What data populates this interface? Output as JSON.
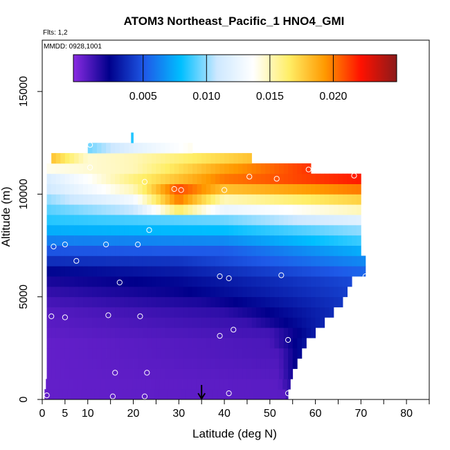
{
  "chart_data": {
    "type": "heatmap",
    "title": "ATOM3 Northeast_Pacific_1 HNO4_GMI",
    "flights_label": "Flts: 1,2",
    "dates_label": "MMDD: 0928,1001",
    "xlabel": "Latitude (deg N)",
    "ylabel": "Altitude (m)",
    "xlim": [
      0,
      85
    ],
    "ylim": [
      0,
      17500
    ],
    "x_ticks": [
      0,
      5,
      10,
      20,
      30,
      40,
      50,
      60,
      70,
      80
    ],
    "x_tick_labels": [
      "0",
      "5",
      "10",
      "20",
      "30",
      "40",
      "50",
      "60",
      "70",
      "80"
    ],
    "x_minor_ticks": [
      15,
      25,
      35,
      45,
      55,
      65,
      75,
      85
    ],
    "y_ticks": [
      0,
      5000,
      10000,
      15000
    ],
    "y_tick_labels": [
      "0",
      "5000",
      "10000",
      "15000"
    ],
    "colorbar": {
      "range": [
        -0.0005,
        0.025
      ],
      "ticks": [
        0.005,
        0.01,
        0.015,
        0.02
      ],
      "tick_labels": [
        "0.005",
        "0.010",
        "0.015",
        "0.020"
      ],
      "colors": [
        "#8a2be2",
        "#00008b",
        "#1e5ae8",
        "#00bfff",
        "#cde8ff",
        "#ffffff",
        "#ffee66",
        "#ff9900",
        "#ff1100",
        "#8b1a1a"
      ]
    },
    "arrow_latitude": 35,
    "layer_height": 500,
    "layers": [
      {
        "alt": 250,
        "x": [
          0.5,
          54
        ],
        "v": [
          [
            0.5,
            0.0003
          ],
          [
            53,
            0.0005
          ],
          [
            54,
            0.0012
          ]
        ]
      },
      {
        "alt": 750,
        "x": [
          0.8,
          54.5
        ],
        "v": [
          [
            0.8,
            0.0003
          ],
          [
            52,
            0.0005
          ],
          [
            54.5,
            0.0015
          ]
        ]
      },
      {
        "alt": 1250,
        "x": [
          1,
          55
        ],
        "v": [
          [
            1,
            0.0003
          ],
          [
            52,
            0.0006
          ],
          [
            55,
            0.002
          ]
        ]
      },
      {
        "alt": 1750,
        "x": [
          1,
          56
        ],
        "v": [
          [
            1,
            0.0003
          ],
          [
            52,
            0.0007
          ],
          [
            56,
            0.0025
          ]
        ]
      },
      {
        "alt": 2250,
        "x": [
          1,
          57
        ],
        "v": [
          [
            1,
            0.0003
          ],
          [
            52,
            0.0008
          ],
          [
            57,
            0.0028
          ]
        ]
      },
      {
        "alt": 2750,
        "x": [
          1,
          58
        ],
        "v": [
          [
            1,
            0.0003
          ],
          [
            50,
            0.0008
          ],
          [
            58,
            0.003
          ]
        ]
      },
      {
        "alt": 3250,
        "x": [
          1,
          60
        ],
        "v": [
          [
            1,
            0.0004
          ],
          [
            50,
            0.001
          ],
          [
            60,
            0.0032
          ]
        ]
      },
      {
        "alt": 3750,
        "x": [
          1,
          62
        ],
        "v": [
          [
            1,
            0.0005
          ],
          [
            45,
            0.0012
          ],
          [
            62,
            0.0035
          ]
        ]
      },
      {
        "alt": 4250,
        "x": [
          1,
          64
        ],
        "v": [
          [
            1,
            0.0006
          ],
          [
            40,
            0.0014
          ],
          [
            64,
            0.0037
          ]
        ]
      },
      {
        "alt": 4750,
        "x": [
          1,
          66
        ],
        "v": [
          [
            1,
            0.0009
          ],
          [
            35,
            0.0018
          ],
          [
            66,
            0.004
          ]
        ]
      },
      {
        "alt": 5250,
        "x": [
          1,
          67
        ],
        "v": [
          [
            1,
            0.0013
          ],
          [
            30,
            0.0022
          ],
          [
            67,
            0.0043
          ]
        ]
      },
      {
        "alt": 5750,
        "x": [
          1,
          68
        ],
        "v": [
          [
            1,
            0.0018
          ],
          [
            30,
            0.0026
          ],
          [
            68,
            0.0046
          ]
        ]
      },
      {
        "alt": 6250,
        "x": [
          1,
          71
        ],
        "v": [
          [
            1,
            0.0025
          ],
          [
            30,
            0.0032
          ],
          [
            71,
            0.0055
          ]
        ]
      },
      {
        "alt": 6750,
        "x": [
          1,
          71
        ],
        "v": [
          [
            1,
            0.0038
          ],
          [
            30,
            0.004
          ],
          [
            71,
            0.0065
          ]
        ]
      },
      {
        "alt": 7250,
        "x": [
          1,
          70
        ],
        "v": [
          [
            1,
            0.005
          ],
          [
            40,
            0.0052
          ],
          [
            70,
            0.0075
          ]
        ]
      },
      {
        "alt": 7750,
        "x": [
          1,
          70
        ],
        "v": [
          [
            1,
            0.0062
          ],
          [
            40,
            0.0065
          ],
          [
            70,
            0.0088
          ]
        ]
      },
      {
        "alt": 8250,
        "x": [
          1,
          70
        ],
        "v": [
          [
            1,
            0.0075
          ],
          [
            40,
            0.008
          ],
          [
            70,
            0.01
          ]
        ]
      },
      {
        "alt": 8750,
        "x": [
          1,
          70
        ],
        "v": [
          [
            1,
            0.0085
          ],
          [
            40,
            0.0095
          ],
          [
            70,
            0.012
          ]
        ]
      },
      {
        "alt": 9250,
        "x": [
          1,
          70
        ],
        "v": [
          [
            1,
            0.0092
          ],
          [
            20,
            0.0108
          ],
          [
            30,
            0.0165
          ],
          [
            40,
            0.0125
          ],
          [
            70,
            0.015
          ]
        ]
      },
      {
        "alt": 9750,
        "x": [
          1,
          70
        ],
        "v": [
          [
            1,
            0.01
          ],
          [
            20,
            0.013
          ],
          [
            30,
            0.02
          ],
          [
            40,
            0.015
          ],
          [
            70,
            0.0175
          ]
        ]
      },
      {
        "alt": 10250,
        "x": [
          1,
          70
        ],
        "v": [
          [
            1,
            0.011
          ],
          [
            20,
            0.015
          ],
          [
            30,
            0.021
          ],
          [
            40,
            0.018
          ],
          [
            70,
            0.02
          ]
        ]
      },
      {
        "alt": 10750,
        "x": [
          1,
          70
        ],
        "v": [
          [
            1,
            0.0115
          ],
          [
            20,
            0.016
          ],
          [
            40,
            0.02
          ],
          [
            70,
            0.022
          ]
        ]
      },
      {
        "alt": 11250,
        "x": [
          1,
          59
        ],
        "v": [
          [
            1,
            0.014
          ],
          [
            20,
            0.015
          ],
          [
            40,
            0.019
          ],
          [
            59,
            0.0215
          ]
        ]
      },
      {
        "alt": 11750,
        "x": [
          2,
          46
        ],
        "v": [
          [
            2,
            0.018
          ],
          [
            10,
            0.0145
          ],
          [
            20,
            0.015
          ],
          [
            46,
            0.018
          ]
        ]
      },
      {
        "alt": 12250,
        "x": [
          10,
          33
        ],
        "v": [
          [
            10,
            0.0095
          ],
          [
            20,
            0.012
          ],
          [
            33,
            0.014
          ]
        ]
      },
      {
        "alt": 12750,
        "x": [
          19.5,
          20
        ],
        "v": [
          [
            19.5,
            0.0085
          ],
          [
            20,
            0.0085
          ]
        ]
      }
    ],
    "points": [
      [
        1,
        200
      ],
      [
        15.5,
        150
      ],
      [
        22.5,
        150
      ],
      [
        41,
        300
      ],
      [
        54,
        300
      ],
      [
        16,
        1300
      ],
      [
        23,
        1300
      ],
      [
        54,
        2900
      ],
      [
        39,
        3100
      ],
      [
        42,
        3400
      ],
      [
        2,
        4050
      ],
      [
        5,
        4000
      ],
      [
        14.5,
        4100
      ],
      [
        21.5,
        4050
      ],
      [
        17,
        5700
      ],
      [
        39,
        6000
      ],
      [
        41,
        5900
      ],
      [
        52.5,
        6050
      ],
      [
        71,
        6000
      ],
      [
        7.5,
        6750
      ],
      [
        2.5,
        7450
      ],
      [
        5,
        7550
      ],
      [
        14,
        7550
      ],
      [
        21,
        7550
      ],
      [
        23.5,
        8250
      ],
      [
        29,
        10250
      ],
      [
        30.5,
        10200
      ],
      [
        40,
        10200
      ],
      [
        45.5,
        10850
      ],
      [
        51.5,
        10750
      ],
      [
        58.5,
        11200
      ],
      [
        68.5,
        10900
      ],
      [
        10.5,
        11300
      ],
      [
        22.5,
        10600
      ],
      [
        10.5,
        12400
      ]
    ]
  }
}
